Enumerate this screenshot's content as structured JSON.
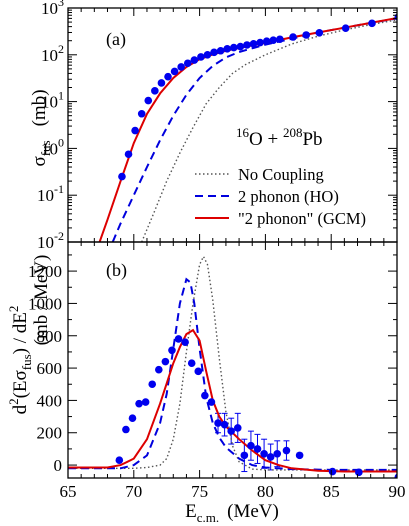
{
  "chart_data": [
    {
      "panel_label": "(a)",
      "type": "line",
      "y_scale": "log",
      "xlim": [
        65,
        90
      ],
      "ylim": [
        0.01,
        1000
      ],
      "ylabel_main": "σ",
      "ylabel_sub": "fus",
      "ylabel_unit": "(mb)",
      "x_ticks": [
        65,
        70,
        75,
        80,
        85,
        90
      ],
      "y_ticks": [
        0.01,
        0.1,
        1,
        10,
        100,
        1000
      ],
      "y_tick_mantissa": "10",
      "y_tick_exponents": [
        "-2",
        "-1",
        "0",
        "1",
        "2",
        "3"
      ],
      "reaction": {
        "mass1": "16",
        "el1": "O + ",
        "mass2": "208",
        "el2": "Pb"
      },
      "legend": {
        "position": "lower-right",
        "entries": [
          "No Coupling",
          "2 phonon (HO)",
          "\"2 phonon\" (GCM)"
        ]
      },
      "series": [
        {
          "name": "No Coupling",
          "style": "dotted",
          "color": "#555555",
          "x": [
            70.6,
            71.5,
            72.5,
            73.5,
            74.5,
            75.5,
            76.5,
            77.5,
            78.5,
            80,
            82,
            84,
            86,
            88,
            90
          ],
          "y": [
            0.01,
            0.04,
            0.2,
            0.8,
            2.8,
            9,
            20,
            40,
            62,
            100,
            170,
            250,
            340,
            440,
            560
          ]
        },
        {
          "name": "2 phonon (HO)",
          "style": "dashed",
          "color": "#0000dd",
          "x": [
            68.4,
            69,
            70,
            71,
            72,
            73,
            74,
            75,
            76,
            77,
            78,
            80,
            82,
            84,
            86,
            88,
            90
          ],
          "y": [
            0.01,
            0.025,
            0.1,
            0.4,
            1.5,
            5,
            14,
            32,
            58,
            88,
            115,
            165,
            220,
            300,
            380,
            480,
            600
          ]
        },
        {
          "name": "\"2 phonon\" (GCM)",
          "style": "solid",
          "color": "#dd0000",
          "x": [
            67.4,
            68,
            69,
            70,
            71,
            72,
            73,
            74,
            75,
            76,
            77,
            78,
            80,
            82,
            84,
            86,
            88,
            90
          ],
          "y": [
            0.01,
            0.03,
            0.2,
            1.3,
            5.5,
            15,
            32,
            55,
            80,
            102,
            122,
            140,
            180,
            235,
            300,
            380,
            480,
            610
          ]
        },
        {
          "name": "data",
          "style": "markers",
          "color": "#0000ee",
          "x": [
            69.1,
            69.6,
            70.1,
            70.6,
            71.1,
            71.6,
            72.1,
            72.6,
            73.1,
            73.6,
            74.1,
            74.6,
            75.1,
            75.6,
            76.1,
            76.6,
            77.1,
            77.6,
            78.1,
            78.6,
            79.1,
            79.6,
            80.1,
            80.6,
            81.1,
            82.1,
            83.1,
            84.1,
            86.1,
            88.1,
            90.1
          ],
          "y": [
            0.25,
            0.75,
            2.4,
            5.5,
            10.5,
            17,
            25,
            34,
            44,
            55,
            66,
            77,
            90,
            100,
            113,
            122,
            134,
            143,
            150,
            162,
            172,
            183,
            195,
            205,
            215,
            240,
            265,
            295,
            370,
            470,
            640
          ]
        }
      ]
    },
    {
      "panel_label": "(b)",
      "type": "line",
      "xlim": [
        65,
        90
      ],
      "ylim": [
        -80,
        1380
      ],
      "xlabel_main": "E",
      "xlabel_sub": "c.m.",
      "xlabel_unit": "(MeV)",
      "ylabel_parts": [
        "d",
        "2",
        "(Eσ",
        "fus",
        ") / dE",
        "2"
      ],
      "ylabel_unit": "(mb / MeV)",
      "x_ticks": [
        65,
        70,
        75,
        80,
        85,
        90
      ],
      "x_tick_labels": [
        "65",
        "70",
        "75",
        "80",
        "85",
        "90"
      ],
      "y_ticks": [
        0,
        200,
        400,
        600,
        800,
        1000,
        1200
      ],
      "y_tick_labels": [
        "0",
        "200",
        "400",
        "600",
        "800",
        "1000",
        "1200"
      ],
      "series": [
        {
          "name": "No Coupling",
          "style": "dotted",
          "color": "#555555",
          "x": [
            65,
            70,
            71,
            72,
            72.5,
            73,
            73.5,
            74,
            74.5,
            75,
            75.3,
            75.6,
            76,
            76.5,
            77,
            77.5,
            78,
            79,
            80,
            82,
            85,
            88,
            90
          ],
          "y": [
            -20,
            -20,
            -15,
            0,
            40,
            160,
            380,
            700,
            1000,
            1240,
            1290,
            1240,
            1020,
            660,
            330,
            120,
            20,
            -25,
            -30,
            -30,
            -30,
            -30,
            -30
          ]
        },
        {
          "name": "2 phonon (HO)",
          "style": "dashed",
          "color": "#0000dd",
          "x": [
            65,
            69,
            70,
            71,
            72,
            72.5,
            73,
            73.5,
            74,
            74.3,
            74.6,
            75,
            75.5,
            76,
            76.5,
            77,
            78,
            79,
            80,
            82,
            85,
            88,
            90
          ],
          "y": [
            -20,
            -20,
            0,
            60,
            260,
            440,
            720,
            1000,
            1150,
            1130,
            1000,
            720,
            420,
            260,
            170,
            110,
            40,
            0,
            -15,
            -25,
            -30,
            -30,
            -30
          ]
        },
        {
          "name": "\"2 phonon\" (GCM)",
          "style": "solid",
          "color": "#dd0000",
          "x": [
            65,
            68,
            69,
            70,
            71,
            72,
            73,
            73.5,
            74,
            74.5,
            75,
            75.5,
            76,
            76.5,
            77,
            78,
            79,
            80,
            81,
            82,
            84,
            86,
            88,
            90
          ],
          "y": [
            -15,
            -15,
            0,
            40,
            160,
            380,
            630,
            730,
            810,
            835,
            770,
            580,
            400,
            300,
            240,
            160,
            90,
            30,
            0,
            -20,
            -35,
            -40,
            -40,
            -40
          ]
        },
        {
          "name": "data",
          "style": "markers",
          "color": "#0000ee",
          "x": [
            68.9,
            69.4,
            69.9,
            70.4,
            70.9,
            71.4,
            71.9,
            72.4,
            72.9,
            73.4,
            73.9,
            74.4,
            74.9,
            75.4,
            75.9,
            76.4,
            76.9,
            77.4,
            77.9,
            78.4,
            78.9,
            79.4,
            79.9,
            80.4,
            80.9,
            81.6,
            82.6,
            85.1,
            87.1,
            90.1
          ],
          "y": [
            30,
            220,
            290,
            380,
            390,
            500,
            590,
            640,
            710,
            780,
            760,
            630,
            580,
            430,
            390,
            260,
            250,
            210,
            230,
            60,
            120,
            100,
            70,
            50,
            70,
            90,
            60,
            -40,
            -45,
            -75
          ],
          "err": [
            0,
            0,
            0,
            0,
            0,
            0,
            0,
            0,
            0,
            0,
            0,
            0,
            0,
            0,
            0,
            60,
            70,
            80,
            90,
            100,
            90,
            90,
            90,
            80,
            80,
            60,
            0,
            0,
            0,
            0
          ]
        }
      ]
    }
  ]
}
